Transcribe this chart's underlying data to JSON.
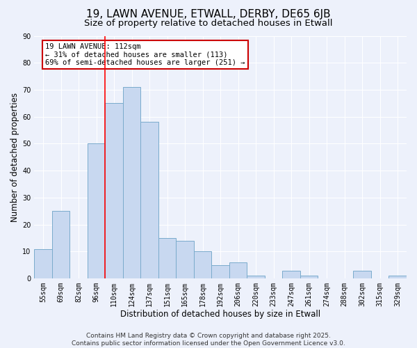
{
  "title": "19, LAWN AVENUE, ETWALL, DERBY, DE65 6JB",
  "subtitle": "Size of property relative to detached houses in Etwall",
  "xlabel": "Distribution of detached houses by size in Etwall",
  "ylabel": "Number of detached properties",
  "bar_labels": [
    "55sqm",
    "69sqm",
    "82sqm",
    "96sqm",
    "110sqm",
    "124sqm",
    "137sqm",
    "151sqm",
    "165sqm",
    "178sqm",
    "192sqm",
    "206sqm",
    "220sqm",
    "233sqm",
    "247sqm",
    "261sqm",
    "274sqm",
    "288sqm",
    "302sqm",
    "315sqm",
    "329sqm"
  ],
  "bar_heights": [
    11,
    25,
    0,
    50,
    65,
    71,
    58,
    15,
    14,
    10,
    5,
    6,
    1,
    0,
    3,
    1,
    0,
    0,
    3,
    0,
    1
  ],
  "bar_color": "#c8d8f0",
  "bar_edge_color": "#7aabcc",
  "red_line_index": 4,
  "ylim": [
    0,
    90
  ],
  "annotation_line1": "19 LAWN AVENUE: 112sqm",
  "annotation_line2": "← 31% of detached houses are smaller (113)",
  "annotation_line3": "69% of semi-detached houses are larger (251) →",
  "annotation_box_color": "#ffffff",
  "annotation_box_edge_color": "#cc0000",
  "footer_text": "Contains HM Land Registry data © Crown copyright and database right 2025.\nContains public sector information licensed under the Open Government Licence v3.0.",
  "background_color": "#edf1fb",
  "grid_color": "#ffffff",
  "title_fontsize": 11,
  "subtitle_fontsize": 9.5,
  "axis_label_fontsize": 8.5,
  "tick_fontsize": 7,
  "annotation_fontsize": 7.5,
  "footer_fontsize": 6.5
}
